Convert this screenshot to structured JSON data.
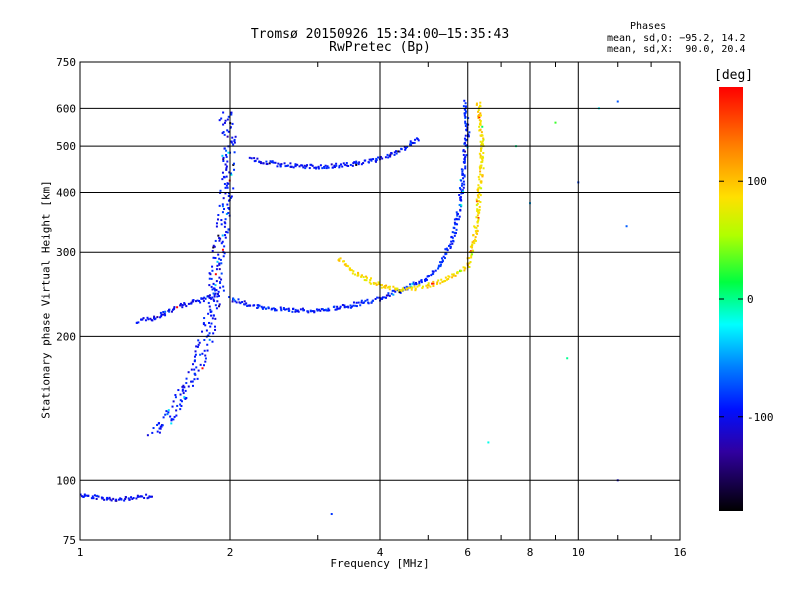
{
  "header": {
    "title_line1": "Tromsø 20150926 15:34:00–15:35:43",
    "title_line2": "RwPretec (Bp)"
  },
  "stats": {
    "heading": "Phases",
    "line_o": "mean, sd,O: −95.2, 14.2",
    "line_x": "mean, sd,X:  90.0, 20.4"
  },
  "chart_data": {
    "type": "scatter",
    "xlabel": "Frequency [MHz]",
    "ylabel": "Stationary phase Virtual Height [km]",
    "x_scale": "log",
    "y_scale": "log",
    "xlim": [
      1,
      16
    ],
    "ylim": [
      75,
      750
    ],
    "x_ticks": [
      1,
      2,
      4,
      6,
      8,
      10,
      16
    ],
    "y_ticks": [
      75,
      100,
      200,
      300,
      400,
      500,
      600,
      750
    ],
    "grid": true,
    "colorbar": {
      "label": "[deg]",
      "range": [
        -180,
        180
      ],
      "ticks": [
        100,
        0,
        -100
      ],
      "colormap": "rainbow (black/violet → blue → cyan → green → yellow → red)"
    },
    "traces": [
      {
        "name": "low-height-band",
        "phase_deg": -110,
        "points": [
          [
            1.0,
            93
          ],
          [
            1.1,
            92
          ],
          [
            1.2,
            91
          ],
          [
            1.3,
            92
          ],
          [
            1.4,
            93
          ]
        ]
      },
      {
        "name": "low-frequency-E-layer",
        "phase_deg": -110,
        "points": [
          [
            1.3,
            215
          ],
          [
            1.4,
            218
          ],
          [
            1.5,
            225
          ],
          [
            1.6,
            232
          ],
          [
            1.7,
            236
          ],
          [
            1.8,
            240
          ],
          [
            1.9,
            245
          ]
        ]
      },
      {
        "name": "lower-lobe",
        "phase_deg": -105,
        "points": [
          [
            1.4,
            125
          ],
          [
            1.5,
            135
          ],
          [
            1.6,
            150
          ],
          [
            1.7,
            165
          ],
          [
            1.75,
            185
          ],
          [
            1.8,
            200
          ],
          [
            1.85,
            230
          ],
          [
            1.9,
            260
          ]
        ]
      },
      {
        "name": "column-near-2MHz",
        "phase_deg": -105,
        "points": [
          [
            1.85,
            250
          ],
          [
            1.9,
            300
          ],
          [
            1.95,
            370
          ],
          [
            1.98,
            450
          ],
          [
            2.0,
            520
          ],
          [
            1.95,
            590
          ]
        ]
      },
      {
        "name": "F-region-O-trace",
        "phase_deg": -100,
        "points": [
          [
            2.0,
            240
          ],
          [
            2.2,
            232
          ],
          [
            2.5,
            228
          ],
          [
            3.0,
            226
          ],
          [
            3.5,
            232
          ],
          [
            4.0,
            240
          ],
          [
            4.5,
            252
          ],
          [
            5.0,
            265
          ],
          [
            5.3,
            285
          ],
          [
            5.6,
            320
          ],
          [
            5.8,
            380
          ],
          [
            5.9,
            460
          ],
          [
            6.0,
            540
          ],
          [
            5.9,
            620
          ]
        ]
      },
      {
        "name": "upper-arc",
        "phase_deg": -105,
        "points": [
          [
            2.2,
            470
          ],
          [
            2.5,
            458
          ],
          [
            3.0,
            452
          ],
          [
            3.5,
            458
          ],
          [
            4.0,
            470
          ],
          [
            4.5,
            495
          ],
          [
            4.8,
            520
          ]
        ]
      },
      {
        "name": "F-region-X-trace",
        "phase_deg": 95,
        "points": [
          [
            3.3,
            290
          ],
          [
            3.5,
            275
          ],
          [
            4.0,
            255
          ],
          [
            4.5,
            250
          ],
          [
            5.0,
            255
          ],
          [
            5.5,
            265
          ],
          [
            6.0,
            280
          ],
          [
            6.2,
            320
          ],
          [
            6.3,
            380
          ],
          [
            6.4,
            450
          ],
          [
            6.4,
            520
          ],
          [
            6.3,
            620
          ]
        ]
      },
      {
        "name": "sparse-points",
        "phase_deg": -60,
        "points": [
          [
            7.5,
            500
          ],
          [
            8.0,
            380
          ],
          [
            9.0,
            560
          ],
          [
            10.0,
            420
          ],
          [
            11.0,
            600
          ],
          [
            12.0,
            620
          ],
          [
            12.5,
            340
          ],
          [
            9.5,
            180
          ],
          [
            12.0,
            100
          ],
          [
            6.6,
            120
          ],
          [
            3.2,
            85
          ]
        ]
      }
    ]
  },
  "colors": {
    "dominant_o": "#1f3cff",
    "dominant_x": "#f0e000",
    "grid": "#000000"
  }
}
